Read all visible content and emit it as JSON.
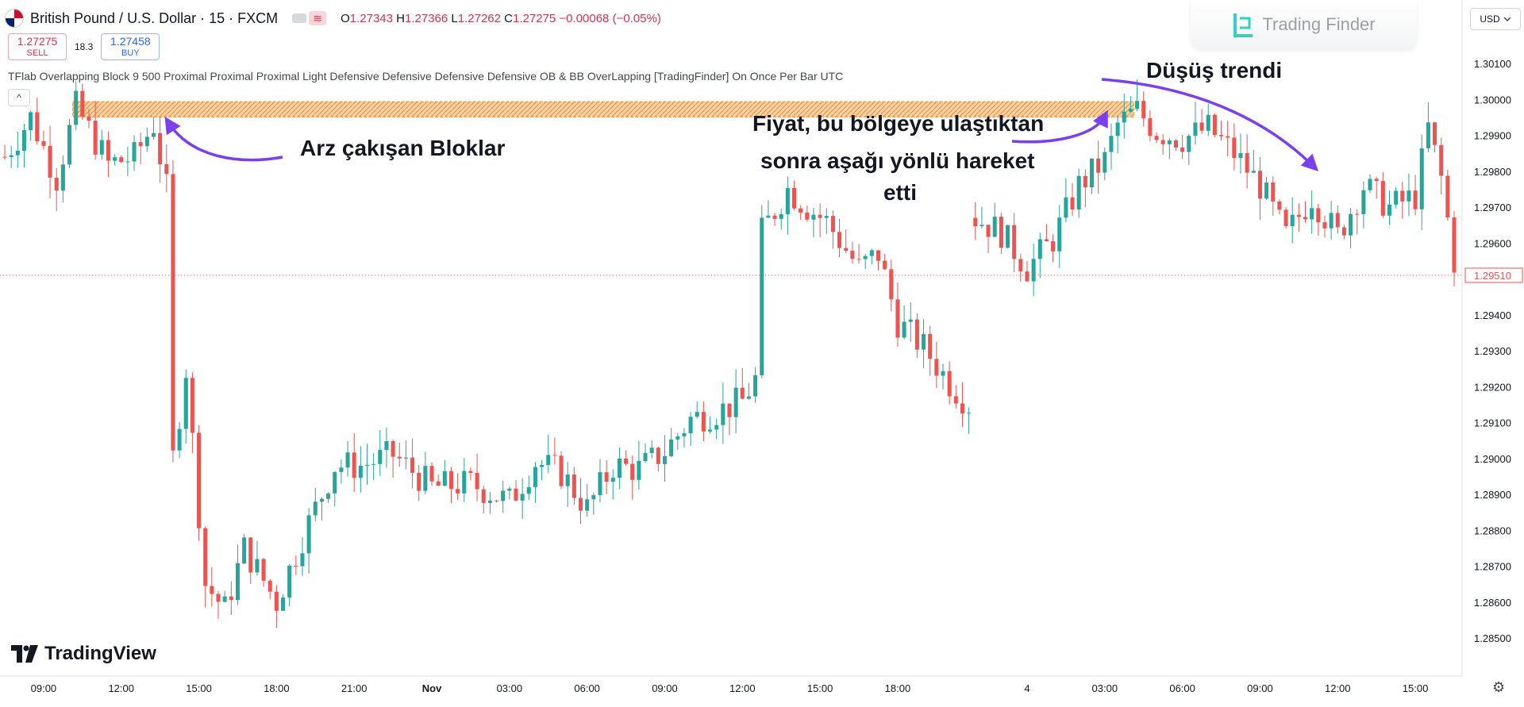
{
  "header": {
    "pair_title": "British Pound / U.S. Dollar · 15 · FXCM",
    "ohlc": {
      "o_label": "O",
      "o": "1.27343",
      "h_label": "H",
      "h": "1.27366",
      "l_label": "L",
      "l": "1.27262",
      "c_label": "C",
      "c": "1.27275",
      "change": "−0.00068 (−0.05%)"
    },
    "toggle_icon": "≋"
  },
  "trade": {
    "sell_price": "1.27275",
    "sell_label": "SELL",
    "spread": "18.3",
    "buy_price": "1.27458",
    "buy_label": "BUY"
  },
  "indicator_line": "TFlab Overlapping Block 9 500 Proximal Proximal Proximal Light Defensive Defensive Defensive Defensive OB & BB OverLapping [TradingFinder] On Once Per Bar UTC",
  "collapse_icon": "^",
  "logo_text": "Trading Finder",
  "currency": {
    "label": "USD",
    "icon": "chevron-down-icon"
  },
  "branding": "TradingView",
  "settings_icon": "gear-icon",
  "colors": {
    "up": "#26a69a",
    "down": "#ef5350",
    "zone": "#f6a04d",
    "arrow": "#7b3ff2",
    "price_tag": "#ef5350"
  },
  "chart_data": {
    "type": "candlestick",
    "y_axis": {
      "ticks": [
        "1.30100",
        "1.30000",
        "1.29900",
        "1.29800",
        "1.29700",
        "1.29600",
        "1.29500",
        "1.29400",
        "1.29300",
        "1.29200",
        "1.29100",
        "1.29000",
        "1.28900",
        "1.28800",
        "1.28700",
        "1.28600",
        "1.28500"
      ],
      "range": [
        1.2845,
        1.3015
      ]
    },
    "x_axis": {
      "ticks": [
        "09:00",
        "12:00",
        "15:00",
        "18:00",
        "21:00",
        "Nov",
        "03:00",
        "06:00",
        "09:00",
        "12:00",
        "15:00",
        "18:00",
        "4",
        "03:00",
        "06:00",
        "09:00",
        "12:00",
        "15:00"
      ],
      "tick_index": [
        6,
        18,
        30,
        42,
        54,
        66,
        78,
        90,
        102,
        114,
        126,
        138,
        158,
        170,
        182,
        194,
        206,
        218
      ]
    },
    "current_price": "1.29510",
    "zone": {
      "top": 1.2998,
      "bottom": 1.2996,
      "from_index": 11,
      "to_index": 174
    },
    "gap_after_index": 149,
    "anchors": [
      [
        0,
        1.2984
      ],
      [
        4,
        1.2995
      ],
      [
        8,
        1.2978
      ],
      [
        11,
        1.2998
      ],
      [
        16,
        1.2982
      ],
      [
        20,
        1.2984
      ],
      [
        23,
        1.2993
      ],
      [
        25,
        1.2975
      ],
      [
        26,
        1.29
      ],
      [
        28,
        1.2925
      ],
      [
        31,
        1.2865
      ],
      [
        34,
        1.2858
      ],
      [
        37,
        1.2875
      ],
      [
        42,
        1.286
      ],
      [
        46,
        1.2878
      ],
      [
        51,
        1.2898
      ],
      [
        55,
        1.2898
      ],
      [
        60,
        1.2901
      ],
      [
        66,
        1.2892
      ],
      [
        72,
        1.2893
      ],
      [
        78,
        1.2888
      ],
      [
        82,
        1.2899
      ],
      [
        86,
        1.2896
      ],
      [
        90,
        1.2886
      ],
      [
        94,
        1.2898
      ],
      [
        98,
        1.2897
      ],
      [
        102,
        1.2902
      ],
      [
        106,
        1.2911
      ],
      [
        110,
        1.2913
      ],
      [
        114,
        1.2916
      ],
      [
        116,
        1.2922
      ],
      [
        117,
        1.2963
      ],
      [
        121,
        1.2975
      ],
      [
        124,
        1.297
      ],
      [
        127,
        1.2966
      ],
      [
        132,
        1.2953
      ],
      [
        135,
        1.2957
      ],
      [
        138,
        1.2938
      ],
      [
        142,
        1.2931
      ],
      [
        146,
        1.2921
      ],
      [
        149,
        1.2915
      ],
      [
        150,
        1.2967
      ],
      [
        154,
        1.2963
      ],
      [
        158,
        1.2953
      ],
      [
        162,
        1.2961
      ],
      [
        166,
        1.2976
      ],
      [
        170,
        1.2983
      ],
      [
        172,
        1.2993
      ],
      [
        175,
        1.2997
      ],
      [
        178,
        1.2991
      ],
      [
        182,
        1.2989
      ],
      [
        186,
        1.2992
      ],
      [
        190,
        1.2985
      ],
      [
        194,
        1.2976
      ],
      [
        198,
        1.2962
      ],
      [
        202,
        1.2973
      ],
      [
        206,
        1.2962
      ],
      [
        210,
        1.2976
      ],
      [
        214,
        1.297
      ],
      [
        218,
        1.2973
      ],
      [
        220,
        1.2992
      ],
      [
        222,
        1.2978
      ],
      [
        224,
        1.2955
      ]
    ],
    "annotations": [
      {
        "text": "Arz çakışan Bloklar"
      },
      {
        "line1": "Fiyat, bu bölgeye ulaştıktan",
        "line2": "sonra aşağı yönlü hareket",
        "line3": "etti"
      },
      {
        "text": "Düşüş trendi"
      }
    ]
  }
}
